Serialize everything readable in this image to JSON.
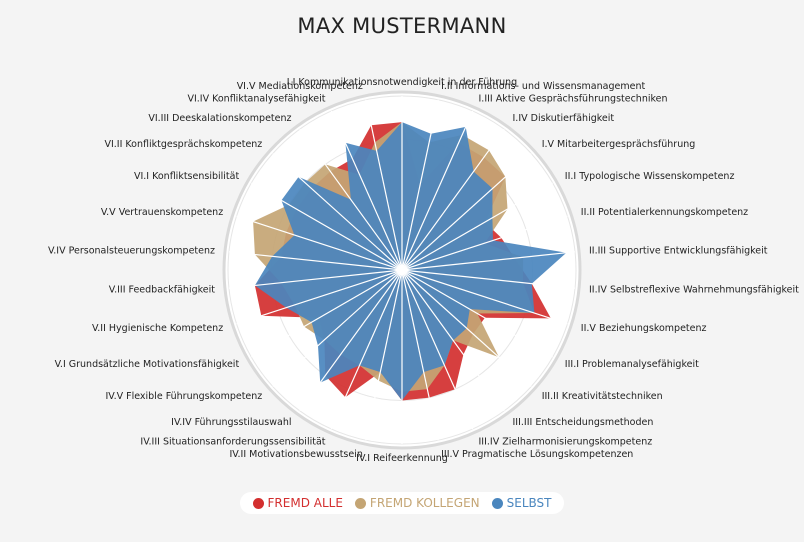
{
  "chart_data": {
    "type": "radar",
    "title": "MAX MUSTERMANN",
    "rlim": [
      0,
      1
    ],
    "grid": true,
    "legend_position": "bottom-center",
    "categories": [
      "I.I Kommunikationsnotwendigkeit in der Führung",
      "I.II Informations- und Wissensmanagement",
      "I.III Aktive Gesprächsführungstechniken",
      "I.IV Diskutierfähigkeit",
      "I.V Mitarbeitergesprächsführung",
      "II.I Typologische Wissenskompetenz",
      "II.II Potentialerkennungskompetenz",
      "II.III Supportive Entwicklungsfähigkeit",
      "II.IV Selbstreflexive Wahrnehmungsfähigkeit",
      "II.V Beziehungskompetenz",
      "III.I Problemanalysefähigkeit",
      "III.II Kreativitätstechniken",
      "III.III Entscheidungsmethoden",
      "III.IV Zielharmonisierungskompetenz",
      "III.V Pragmatische Lösungskompetenzen",
      "IV.I Reifeerkennung",
      "IV.II Motivationsbewusstsein",
      "IV.III Situationsanforderungssensibilität",
      "IV.IV Führungsstilauswahl",
      "IV.V Flexible Führungskompetenz",
      "V.I Grundsätzliche Motivationsfähigkeit",
      "V.II Hygienische Kompetenz",
      "V.III Feedbackfähigkeit",
      "V.IV Personalsteuerungskompetenz",
      "V.V Vertrauenskompetenz",
      "VI.I Konfliktsensibilität",
      "VI.II Konfliktgesprächskompetenz",
      "VI.III Deeskalationskompetenz",
      "VI.IV Konfliktanalysefähigkeit",
      "VI.V Mediationskompetenz"
    ],
    "series": [
      {
        "name": "FREMD ALLE",
        "color": "#d32f2f",
        "values": [
          0.85,
          0.5,
          0.8,
          0.8,
          0.8,
          0.55,
          0.6,
          0.65,
          0.75,
          0.9,
          0.55,
          0.55,
          0.6,
          0.75,
          0.75,
          0.75,
          0.6,
          0.8,
          0.75,
          0.6,
          0.55,
          0.85,
          0.85,
          0.7,
          0.7,
          0.7,
          0.7,
          0.7,
          0.7,
          0.85
        ]
      },
      {
        "name": "FREMD KOLLEGEN",
        "color": "#c4a574",
        "values": [
          0.85,
          0.75,
          0.85,
          0.85,
          0.8,
          0.7,
          0.5,
          0.7,
          0.7,
          0.8,
          0.5,
          0.75,
          0.5,
          0.6,
          0.7,
          0.7,
          0.65,
          0.6,
          0.6,
          0.6,
          0.65,
          0.65,
          0.7,
          0.85,
          0.9,
          0.75,
          0.75,
          0.75,
          0.6,
          0.75
        ]
      },
      {
        "name": "SELBST",
        "color": "#4a86be",
        "values": [
          0.85,
          0.8,
          0.9,
          0.7,
          0.7,
          0.6,
          0.55,
          0.95,
          0.75,
          0.8,
          0.45,
          0.5,
          0.5,
          0.6,
          0.6,
          0.75,
          0.6,
          0.6,
          0.8,
          0.65,
          0.6,
          0.7,
          0.85,
          0.75,
          0.65,
          0.8,
          0.8,
          0.5,
          0.8,
          0.7
        ]
      }
    ]
  }
}
